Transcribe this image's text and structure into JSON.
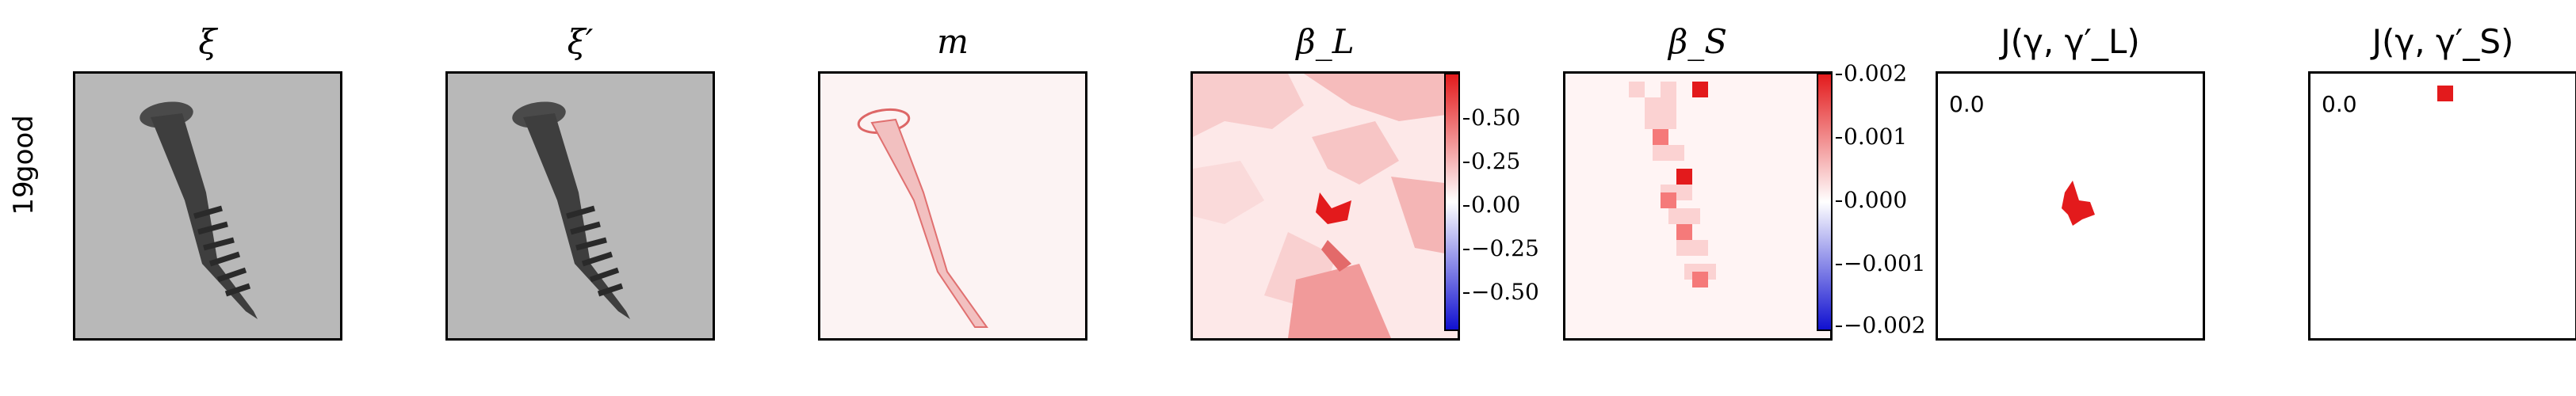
{
  "row": {
    "label_line1": "good",
    "label_line2": "19"
  },
  "panels": {
    "xi": {
      "title": "ξ"
    },
    "xi_prime": {
      "title": "ξ′"
    },
    "m": {
      "title": "m"
    },
    "beta_L": {
      "title": "β_L"
    },
    "beta_S": {
      "title": "β_S"
    },
    "J_L": {
      "title": "J(γ, γ′_L)",
      "value": "0.0"
    },
    "J_S": {
      "title": "J(γ, γ′_S)",
      "value": "0.0"
    }
  },
  "colorbar_L": {
    "ticks": [
      "0.50",
      "0.25",
      "0.00",
      "−0.25",
      "−0.50"
    ]
  },
  "colorbar_S": {
    "ticks": [
      "0.002",
      "0.001",
      "0.000",
      "−0.001",
      "−0.002"
    ]
  },
  "colors": {
    "red": "#e31a1c",
    "blue": "#1010d0",
    "gray_bg": "#b8b8b8"
  }
}
